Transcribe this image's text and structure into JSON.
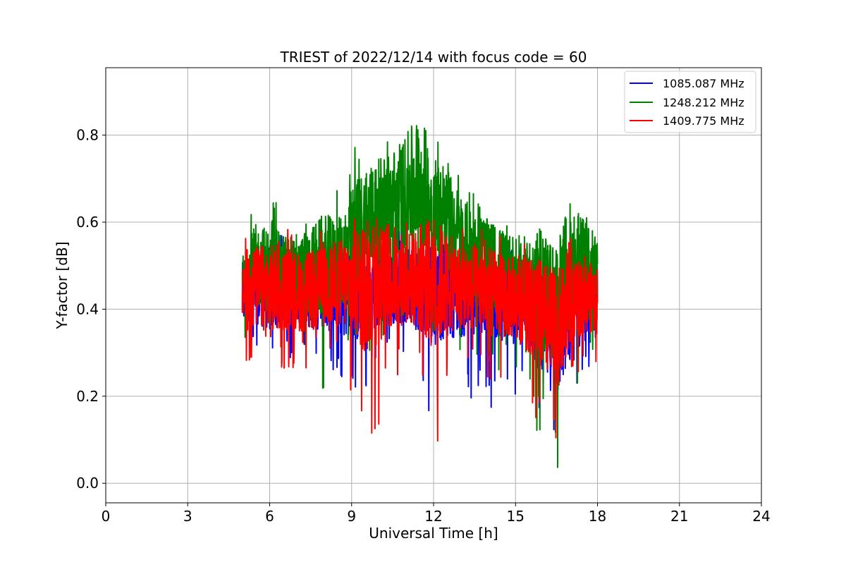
{
  "chart_data": {
    "type": "line",
    "title": "TRIEST of 2022/12/14 with focus code = 60",
    "xlabel": "Universal Time [h]",
    "ylabel": "Y-factor [dB]",
    "xlim": [
      0,
      24
    ],
    "ylim": [
      -0.045,
      0.955
    ],
    "xticks": [
      0,
      3,
      6,
      9,
      12,
      15,
      18,
      21,
      24
    ],
    "xtick_labels": [
      "0",
      "3",
      "6",
      "9",
      "12",
      "15",
      "18",
      "21",
      "24"
    ],
    "yticks": [
      0.0,
      0.2,
      0.4,
      0.6,
      0.8
    ],
    "ytick_labels": [
      "0.0",
      "0.2",
      "0.4",
      "0.6",
      "0.8"
    ],
    "grid": true,
    "legend_position": "top-right",
    "series": [
      {
        "name": "1085.087 MHz",
        "color": "#0000ff",
        "x": [
          5.0,
          5.5,
          6.0,
          6.5,
          7.0,
          7.5,
          8.0,
          8.5,
          9.0,
          9.5,
          10.0,
          10.5,
          11.0,
          11.5,
          12.0,
          12.5,
          13.0,
          13.5,
          14.0,
          14.5,
          15.0,
          15.5,
          16.0,
          16.5,
          17.0,
          17.5,
          18.0
        ],
        "mean": [
          0.43,
          0.45,
          0.43,
          0.44,
          0.43,
          0.43,
          0.44,
          0.44,
          0.43,
          0.42,
          0.44,
          0.45,
          0.45,
          0.45,
          0.44,
          0.44,
          0.43,
          0.44,
          0.42,
          0.42,
          0.41,
          0.4,
          0.36,
          0.33,
          0.38,
          0.41,
          0.42
        ],
        "low": [
          0.3,
          0.3,
          0.27,
          0.26,
          0.3,
          0.3,
          0.25,
          0.24,
          0.24,
          0.16,
          0.28,
          0.3,
          0.29,
          0.23,
          0.13,
          0.2,
          0.21,
          0.18,
          0.15,
          0.2,
          0.2,
          0.18,
          0.06,
          0.0,
          0.12,
          0.26,
          0.2
        ],
        "high": [
          0.58,
          0.6,
          0.56,
          0.58,
          0.55,
          0.57,
          0.58,
          0.6,
          0.6,
          0.57,
          0.58,
          0.6,
          0.6,
          0.6,
          0.58,
          0.58,
          0.56,
          0.57,
          0.55,
          0.55,
          0.53,
          0.53,
          0.5,
          0.5,
          0.55,
          0.56,
          0.54
        ]
      },
      {
        "name": "1248.212 MHz",
        "color": "#008000",
        "x": [
          5.0,
          5.5,
          6.0,
          6.5,
          7.0,
          7.5,
          8.0,
          8.5,
          9.0,
          9.5,
          10.0,
          10.5,
          11.0,
          11.5,
          12.0,
          12.5,
          13.0,
          13.5,
          14.0,
          14.5,
          15.0,
          15.5,
          16.0,
          16.5,
          17.0,
          17.5,
          18.0
        ],
        "mean": [
          0.46,
          0.5,
          0.49,
          0.49,
          0.48,
          0.48,
          0.5,
          0.5,
          0.55,
          0.58,
          0.63,
          0.64,
          0.67,
          0.7,
          0.62,
          0.6,
          0.55,
          0.52,
          0.51,
          0.49,
          0.48,
          0.46,
          0.45,
          0.4,
          0.5,
          0.52,
          0.47
        ],
        "low": [
          0.33,
          0.33,
          0.3,
          0.32,
          0.32,
          0.22,
          0.18,
          0.3,
          0.3,
          0.22,
          0.33,
          0.35,
          0.37,
          0.35,
          0.28,
          0.3,
          0.3,
          0.3,
          0.28,
          0.25,
          0.25,
          0.18,
          0.04,
          0.02,
          0.09,
          0.3,
          0.3
        ],
        "high": [
          0.6,
          0.68,
          0.66,
          0.63,
          0.6,
          0.62,
          0.62,
          0.68,
          0.78,
          0.78,
          0.75,
          0.82,
          0.85,
          0.905,
          0.8,
          0.75,
          0.73,
          0.68,
          0.63,
          0.6,
          0.58,
          0.56,
          0.56,
          0.55,
          0.63,
          0.63,
          0.6
        ]
      },
      {
        "name": "1409.775 MHz",
        "color": "#ff0000",
        "x": [
          5.0,
          5.5,
          6.0,
          6.5,
          7.0,
          7.5,
          8.0,
          8.5,
          9.0,
          9.5,
          10.0,
          10.5,
          11.0,
          11.5,
          12.0,
          12.5,
          13.0,
          13.5,
          14.0,
          14.5,
          15.0,
          15.5,
          16.0,
          16.5,
          17.0,
          17.5,
          18.0
        ],
        "mean": [
          0.44,
          0.45,
          0.44,
          0.45,
          0.44,
          0.44,
          0.45,
          0.46,
          0.46,
          0.45,
          0.46,
          0.47,
          0.47,
          0.47,
          0.46,
          0.46,
          0.45,
          0.45,
          0.44,
          0.43,
          0.42,
          0.41,
          0.38,
          0.35,
          0.4,
          0.43,
          0.42
        ],
        "low": [
          0.27,
          0.25,
          0.18,
          0.25,
          0.25,
          0.26,
          0.28,
          0.25,
          0.2,
          0.03,
          0.12,
          0.22,
          0.25,
          0.22,
          0.05,
          0.2,
          0.25,
          0.22,
          0.2,
          0.22,
          0.22,
          0.15,
          0.05,
          0.0,
          0.2,
          0.28,
          0.26
        ],
        "high": [
          0.61,
          0.6,
          0.58,
          0.6,
          0.58,
          0.6,
          0.61,
          0.62,
          0.62,
          0.6,
          0.62,
          0.63,
          0.64,
          0.65,
          0.63,
          0.62,
          0.6,
          0.59,
          0.58,
          0.57,
          0.55,
          0.55,
          0.53,
          0.52,
          0.57,
          0.58,
          0.55
        ]
      }
    ]
  }
}
